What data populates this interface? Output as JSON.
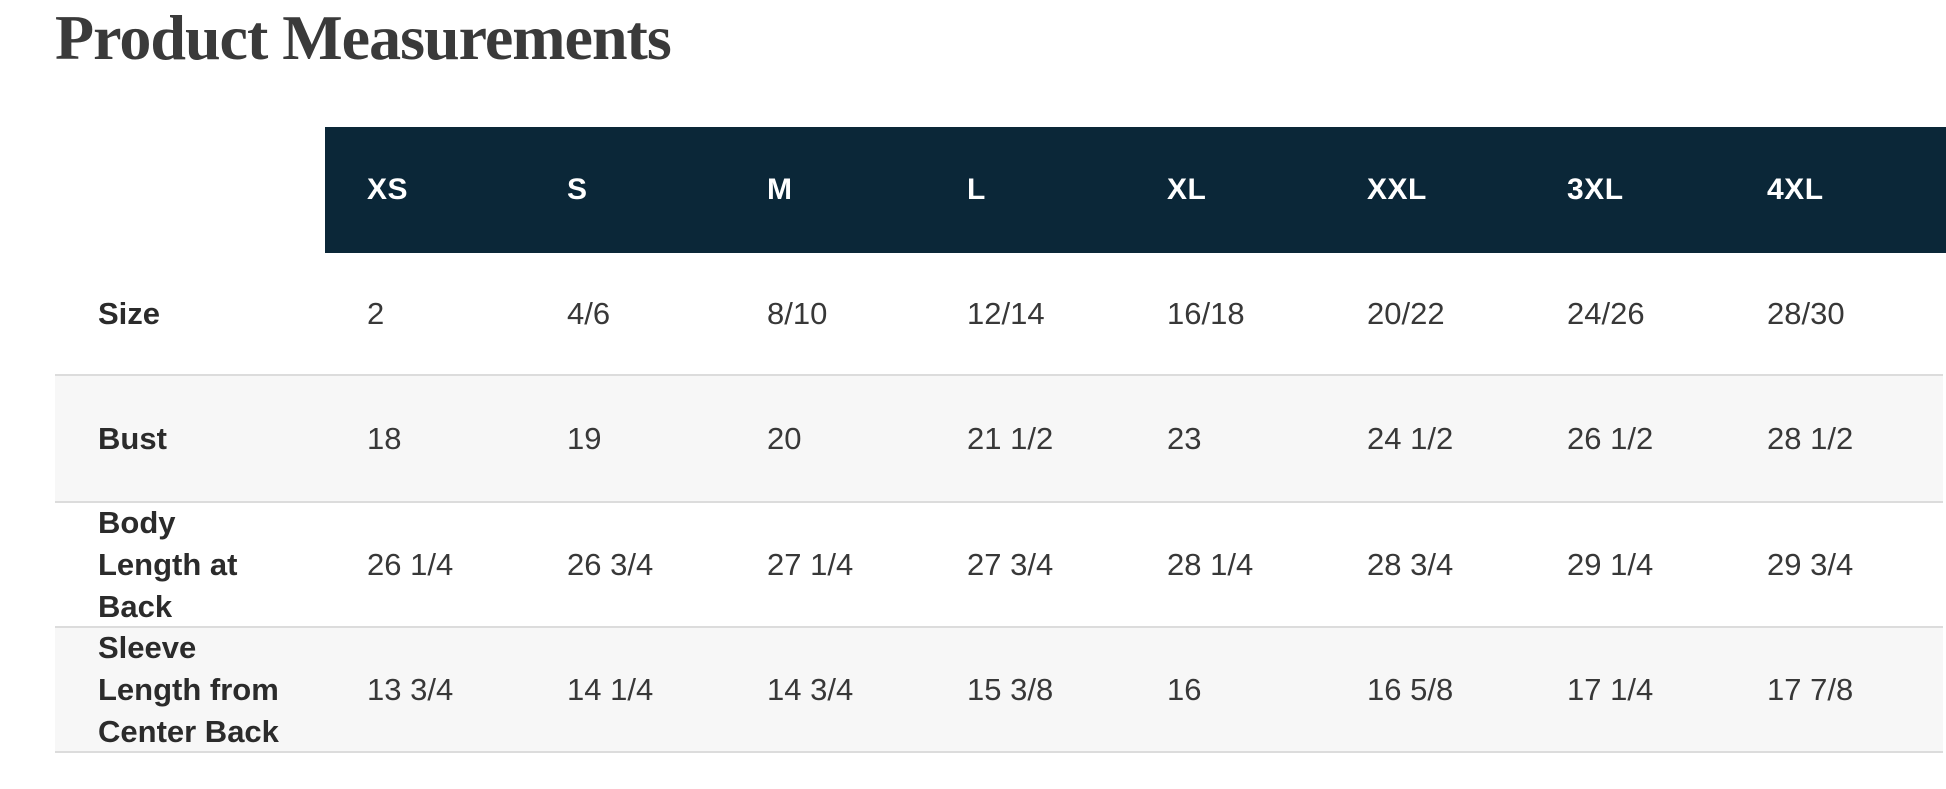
{
  "page": {
    "title": "Product Measurements"
  },
  "colors": {
    "header_background": "#0b2738",
    "header_text": "#ffffff",
    "stripe_background": "#f7f7f7",
    "divider": "#dcdcdc",
    "title_text": "#3a3a3a",
    "body_text": "#383838"
  },
  "table": {
    "headers": [
      "XS",
      "S",
      "M",
      "L",
      "XL",
      "XXL",
      "3XL",
      "4XL"
    ],
    "rows": [
      {
        "label": "Size",
        "values": [
          "2",
          "4/6",
          "8/10",
          "12/14",
          "16/18",
          "20/22",
          "24/26",
          "28/30"
        ]
      },
      {
        "label": "Bust",
        "values": [
          "18",
          "19",
          "20",
          "21 1/2",
          "23",
          "24 1/2",
          "26 1/2",
          "28 1/2"
        ]
      },
      {
        "label": "Body Length at Back",
        "values": [
          "26 1/4",
          "26 3/4",
          "27 1/4",
          "27 3/4",
          "28 1/4",
          "28 3/4",
          "29 1/4",
          "29 3/4"
        ]
      },
      {
        "label": "Sleeve Length from Center Back",
        "values": [
          "13 3/4",
          "14 1/4",
          "14 3/4",
          "15 3/8",
          "16",
          "16 5/8",
          "17 1/4",
          "17 7/8"
        ]
      }
    ]
  }
}
